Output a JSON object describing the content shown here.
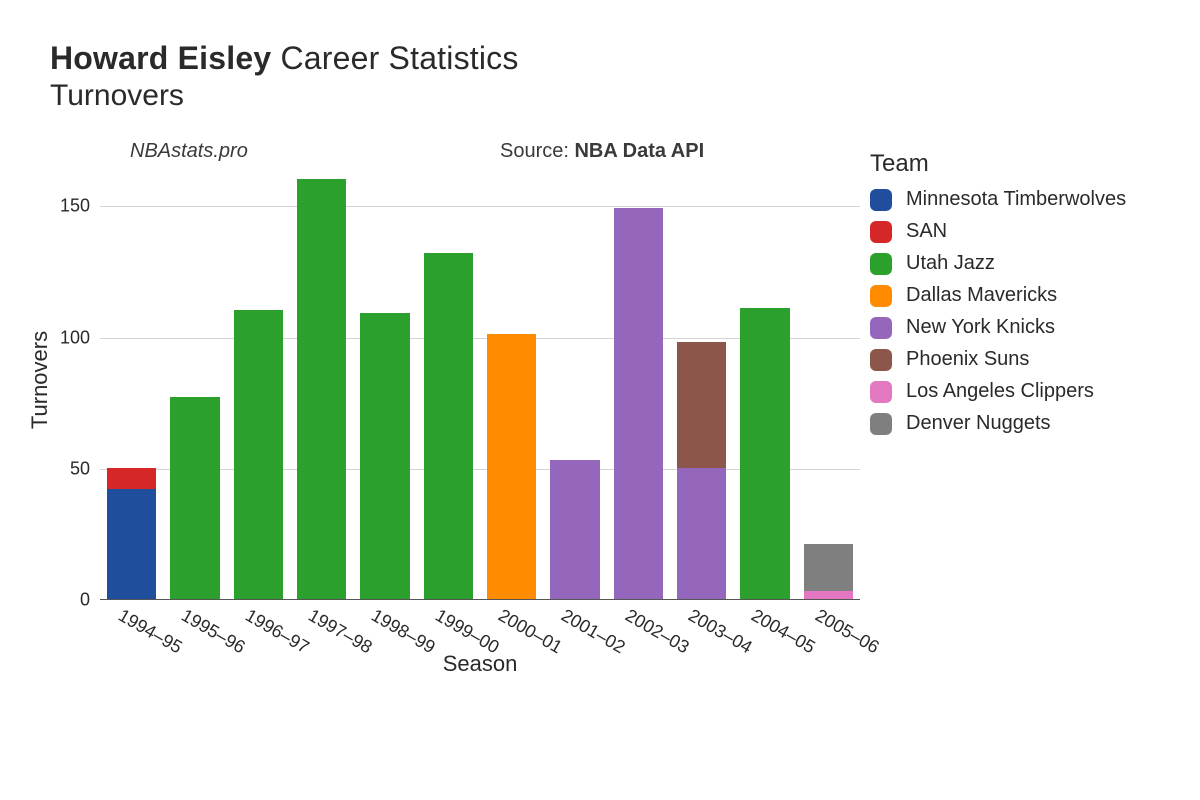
{
  "title": {
    "player": "Howard Eisley",
    "suffix": "Career Statistics",
    "metric": "Turnovers"
  },
  "meta": {
    "site": "NBAstats.pro",
    "source_prefix": "Source: ",
    "source_name": "NBA Data API"
  },
  "chart": {
    "type": "stacked-bar",
    "xlabel": "Season",
    "ylabel": "Turnovers",
    "ylim": [
      0,
      160
    ],
    "yticks": [
      0,
      50,
      100,
      150
    ],
    "grid_color": "#b0b0b0",
    "background_color": "#ffffff",
    "axis_color": "#555555",
    "label_fontsize": 22,
    "tick_fontsize": 18,
    "bar_width_ratio": 0.78,
    "categories": [
      "1994–95",
      "1995–96",
      "1996–97",
      "1997–98",
      "1998–99",
      "1999–00",
      "2000–01",
      "2001–02",
      "2002–03",
      "2003–04",
      "2004–05",
      "2005–06"
    ],
    "series": [
      {
        "key": "min",
        "label": "Minnesota Timberwolves",
        "color": "#1f4e9c"
      },
      {
        "key": "san",
        "label": "SAN",
        "color": "#d62728"
      },
      {
        "key": "uta",
        "label": "Utah Jazz",
        "color": "#2ca02c"
      },
      {
        "key": "dal",
        "label": "Dallas Mavericks",
        "color": "#ff8c00"
      },
      {
        "key": "nyk",
        "label": "New York Knicks",
        "color": "#9467bd"
      },
      {
        "key": "phx",
        "label": "Phoenix Suns",
        "color": "#8c564b"
      },
      {
        "key": "lac",
        "label": "Los Angeles Clippers",
        "color": "#e377c2"
      },
      {
        "key": "den",
        "label": "Denver Nuggets",
        "color": "#7f7f7f"
      }
    ],
    "stacks": [
      [
        {
          "key": "min",
          "value": 42
        },
        {
          "key": "san",
          "value": 8
        }
      ],
      [
        {
          "key": "uta",
          "value": 77
        }
      ],
      [
        {
          "key": "uta",
          "value": 110
        }
      ],
      [
        {
          "key": "uta",
          "value": 160
        }
      ],
      [
        {
          "key": "uta",
          "value": 109
        }
      ],
      [
        {
          "key": "uta",
          "value": 132
        }
      ],
      [
        {
          "key": "dal",
          "value": 101
        }
      ],
      [
        {
          "key": "nyk",
          "value": 53
        }
      ],
      [
        {
          "key": "nyk",
          "value": 149
        }
      ],
      [
        {
          "key": "nyk",
          "value": 50
        },
        {
          "key": "phx",
          "value": 48
        }
      ],
      [
        {
          "key": "uta",
          "value": 111
        }
      ],
      [
        {
          "key": "lac",
          "value": 3
        },
        {
          "key": "den",
          "value": 18
        }
      ]
    ]
  },
  "legend": {
    "title": "Team"
  }
}
